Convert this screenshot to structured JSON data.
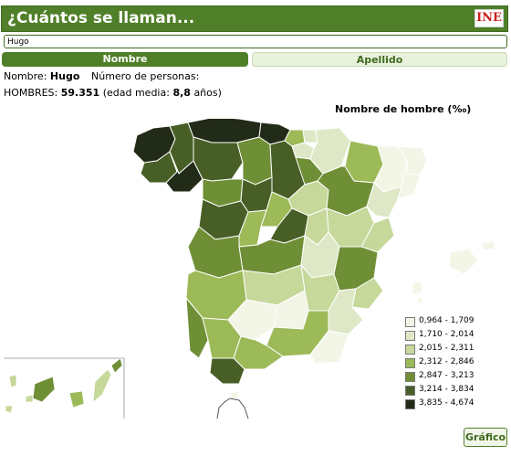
{
  "header": {
    "title": "¿Cuántos se llaman...",
    "logo_text": "INE"
  },
  "search": {
    "value": "Hugo"
  },
  "tabs": [
    {
      "label": "Nombre",
      "active": true
    },
    {
      "label": "Apellido",
      "active": false
    }
  ],
  "info": {
    "nombre_label": "Nombre:",
    "nombre_value": "Hugo",
    "personas_label": "Número de personas:",
    "hombres_label": "HOMBRES:",
    "hombres_value": "59.351",
    "edad_label": "(edad media:",
    "edad_value": "8,8",
    "edad_unit": "años)"
  },
  "map": {
    "title": "Nombre de hombre (‰)"
  },
  "legend": [
    {
      "label": "0,964 - 1,709",
      "color": "#f3f5e6"
    },
    {
      "label": "1,710 - 2,014",
      "color": "#dfe8c6"
    },
    {
      "label": "2,015 - 2,311",
      "color": "#c6d89a"
    },
    {
      "label": "2,312 - 2,846",
      "color": "#9cba58"
    },
    {
      "label": "2,847 - 3,213",
      "color": "#6f8f36"
    },
    {
      "label": "3,214 - 3,834",
      "color": "#475f26"
    },
    {
      "label": "3,835 - 4,674",
      "color": "#222a18"
    }
  ],
  "button": {
    "label": "Gráfico"
  }
}
